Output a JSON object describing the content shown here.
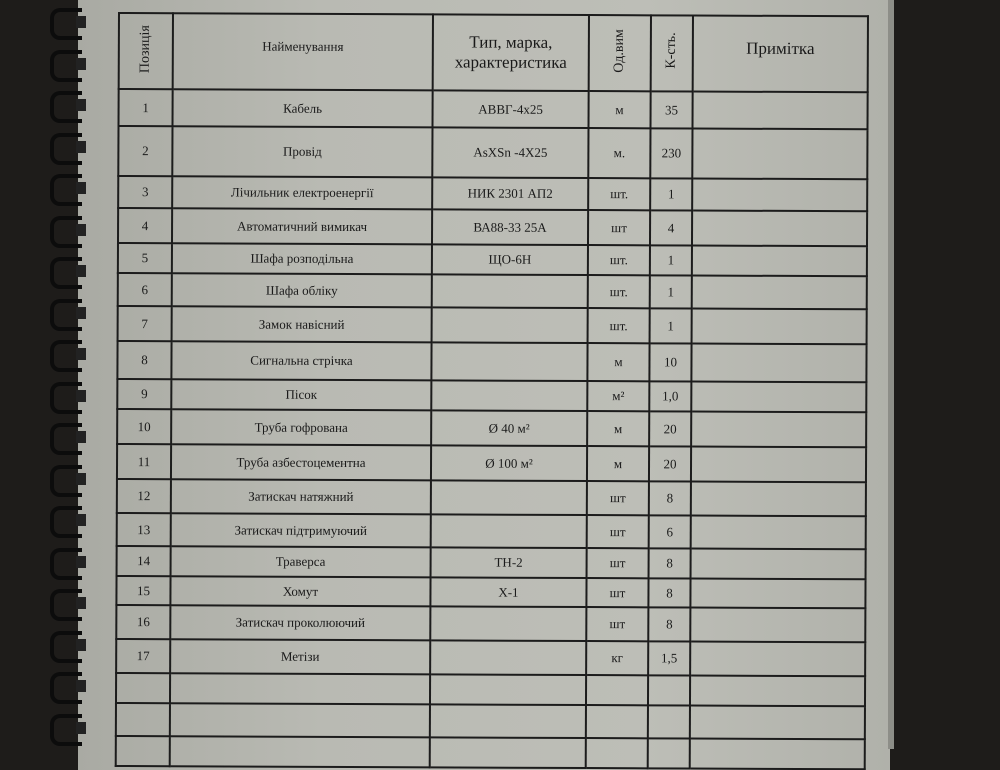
{
  "headers": {
    "position": "Позиція",
    "name": "Найменування",
    "type": "Тип, марка, характеристика",
    "unit": "Од.вим",
    "qty": "К-сть.",
    "note": "Примітка"
  },
  "rows": [
    {
      "pos": "1",
      "name": "Кабель",
      "type": "АВВГ-4х25",
      "unit": "м",
      "qty": "35",
      "note": ""
    },
    {
      "pos": "2",
      "name": "Провід",
      "type": "AsXSn -4X25",
      "unit": "м.",
      "qty": "230",
      "note": ""
    },
    {
      "pos": "3",
      "name": "Лічильник електроенергії",
      "type": "НИК 2301 АП2",
      "unit": "шт.",
      "qty": "1",
      "note": ""
    },
    {
      "pos": "4",
      "name": "Автоматичний вимикач",
      "type": "ВА88-33  25А",
      "unit": "шт",
      "qty": "4",
      "note": ""
    },
    {
      "pos": "5",
      "name": "Шафа розподільна",
      "type": "ЩО-6Н",
      "unit": "шт.",
      "qty": "1",
      "note": ""
    },
    {
      "pos": "6",
      "name": "Шафа обліку",
      "type": "",
      "unit": "шт.",
      "qty": "1",
      "note": ""
    },
    {
      "pos": "7",
      "name": "Замок навісний",
      "type": "",
      "unit": "шт.",
      "qty": "1",
      "note": ""
    },
    {
      "pos": "8",
      "name": "Сигнальна стрічка",
      "type": "",
      "unit": "м",
      "qty": "10",
      "note": ""
    },
    {
      "pos": "9",
      "name": "Пісок",
      "type": "",
      "unit": "м²",
      "qty": "1,0",
      "note": ""
    },
    {
      "pos": "10",
      "name": "Труба гофрована",
      "type": "Ø 40 м²",
      "unit": "м",
      "qty": "20",
      "note": ""
    },
    {
      "pos": "11",
      "name": "Труба азбестоцементна",
      "type": "Ø 100 м²",
      "unit": "м",
      "qty": "20",
      "note": ""
    },
    {
      "pos": "12",
      "name": "Затискач натяжний",
      "type": "",
      "unit": "шт",
      "qty": "8",
      "note": ""
    },
    {
      "pos": "13",
      "name": "Затискач підтримуючий",
      "type": "",
      "unit": "шт",
      "qty": "6",
      "note": ""
    },
    {
      "pos": "14",
      "name": "Траверса",
      "type": "ТН-2",
      "unit": "шт",
      "qty": "8",
      "note": ""
    },
    {
      "pos": "15",
      "name": "Хомут",
      "type": "Х-1",
      "unit": "шт",
      "qty": "8",
      "note": ""
    },
    {
      "pos": "16",
      "name": "Затискач проколюючий",
      "type": "",
      "unit": "шт",
      "qty": "8",
      "note": ""
    },
    {
      "pos": "17",
      "name": "Метізи",
      "type": "",
      "unit": "кг",
      "qty": "1,5",
      "note": ""
    }
  ]
}
